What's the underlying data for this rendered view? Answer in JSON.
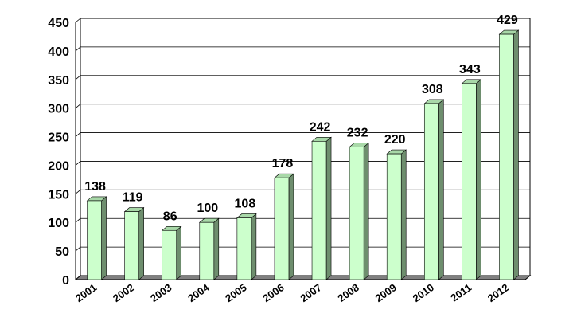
{
  "chart_data": {
    "type": "bar",
    "title": "",
    "xlabel": "",
    "ylabel": "",
    "categories": [
      "2001",
      "2002",
      "2003",
      "2004",
      "2005",
      "2006",
      "2007",
      "2008",
      "2009",
      "2010",
      "2011",
      "2012"
    ],
    "values": [
      138,
      119,
      86,
      100,
      108,
      178,
      242,
      232,
      220,
      308,
      343,
      429
    ],
    "ylim": [
      0,
      450
    ],
    "yticks": [
      0,
      50,
      100,
      150,
      200,
      250,
      300,
      350,
      400,
      450
    ],
    "grid": true,
    "legend": "none",
    "style": "3d",
    "colors": {
      "bar_front": "#ccffcc",
      "bar_top": "#a8d8a8",
      "bar_side": "#6e8e6e",
      "floor": "#808080",
      "grid": "#000000",
      "outline": "#000000"
    }
  }
}
